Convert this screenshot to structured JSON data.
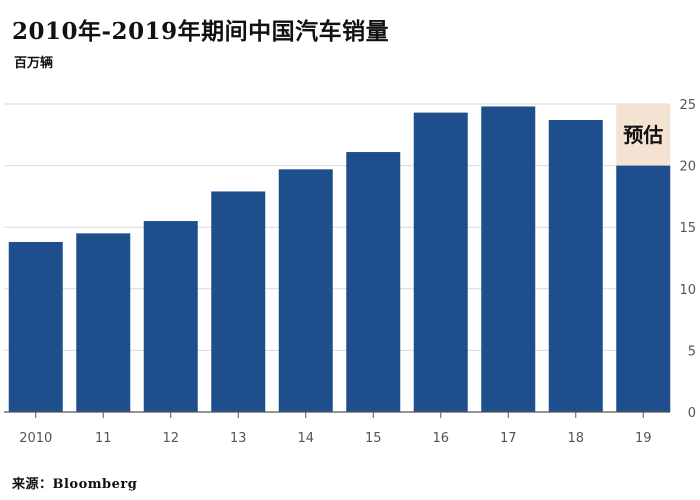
{
  "header": {
    "title": "2010年-2019年期间中国汽车销量",
    "unit": "百万辆"
  },
  "footer": {
    "source": "来源：Bloomberg"
  },
  "colors": {
    "bar": "#1f4e8c",
    "estimate_band": "#f4e3d3",
    "grid": "#d9d9d9",
    "axis": "#555555",
    "tick_text": "#555555"
  },
  "chart_data": {
    "type": "bar",
    "categories": [
      "2010",
      "11",
      "12",
      "13",
      "14",
      "15",
      "16",
      "17",
      "18",
      "19"
    ],
    "values": [
      13.8,
      14.5,
      15.5,
      17.9,
      19.7,
      21.1,
      24.3,
      24.8,
      23.7,
      20.0
    ],
    "title": "2010年-2019年期间中国汽车销量",
    "ylabel": "百万辆",
    "xlabel": "",
    "ylim": [
      0,
      25
    ],
    "yticks": [
      0,
      5,
      10,
      15,
      20,
      25
    ],
    "y_axis_side": "right",
    "grid": true,
    "annotations": [
      {
        "category": "19",
        "text": "预估",
        "from": 20,
        "to": 25
      }
    ]
  }
}
